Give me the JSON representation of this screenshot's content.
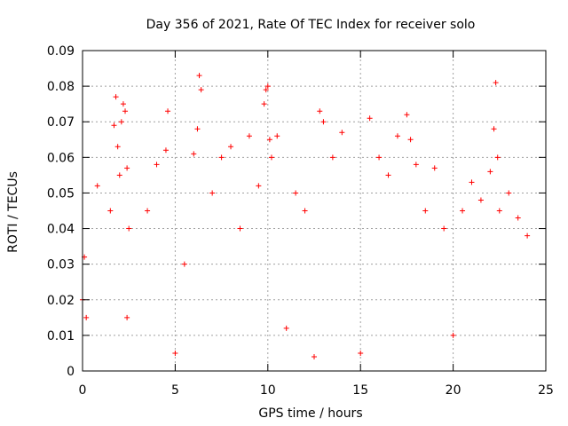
{
  "chart_data": {
    "type": "scatter",
    "title": "Day 356 of 2021, Rate Of TEC Index for receiver solo",
    "xlabel": "GPS time / hours",
    "ylabel": "ROTI / TECUs",
    "xlim": [
      0,
      25
    ],
    "ylim": [
      0,
      0.09
    ],
    "x_ticks": [
      0,
      5,
      10,
      15,
      20,
      25
    ],
    "y_ticks": [
      0,
      0.01,
      0.02,
      0.03,
      0.04,
      0.05,
      0.06,
      0.07,
      0.08,
      0.09
    ],
    "x_tick_labels": [
      "0",
      "5",
      "10",
      "15",
      "20",
      "25"
    ],
    "y_tick_labels": [
      "0",
      "0.01",
      "0.02",
      "0.03",
      "0.04",
      "0.05",
      "0.06",
      "0.07",
      "0.08",
      "0.09"
    ],
    "grid": true,
    "marker": "+",
    "marker_color": "#ff0000",
    "series": [
      {
        "name": "ROTI",
        "x": [
          0.0,
          0.1,
          0.2,
          0.8,
          1.5,
          1.7,
          1.8,
          1.9,
          2.0,
          2.1,
          2.2,
          2.3,
          2.4,
          2.4,
          2.5,
          3.5,
          4.0,
          4.5,
          4.6,
          5.0,
          5.5,
          6.0,
          6.2,
          6.3,
          6.4,
          7.0,
          7.5,
          8.0,
          8.5,
          9.0,
          9.5,
          9.8,
          9.9,
          10.0,
          10.1,
          10.2,
          10.5,
          11.0,
          11.5,
          12.0,
          12.5,
          12.8,
          13.0,
          13.5,
          14.0,
          15.0,
          15.5,
          16.0,
          16.5,
          17.0,
          17.5,
          17.7,
          18.0,
          18.5,
          19.0,
          19.5,
          20.0,
          20.5,
          21.0,
          21.5,
          22.0,
          22.2,
          22.3,
          22.4,
          22.5,
          23.0,
          23.5,
          24.0
        ],
        "y": [
          0.02,
          0.032,
          0.015,
          0.052,
          0.045,
          0.069,
          0.077,
          0.063,
          0.055,
          0.07,
          0.075,
          0.073,
          0.057,
          0.015,
          0.04,
          0.045,
          0.058,
          0.062,
          0.073,
          0.005,
          0.03,
          0.061,
          0.068,
          0.083,
          0.079,
          0.05,
          0.06,
          0.063,
          0.04,
          0.066,
          0.052,
          0.075,
          0.079,
          0.08,
          0.065,
          0.06,
          0.066,
          0.012,
          0.05,
          0.045,
          0.004,
          0.073,
          0.07,
          0.06,
          0.067,
          0.005,
          0.071,
          0.06,
          0.055,
          0.066,
          0.072,
          0.065,
          0.058,
          0.045,
          0.057,
          0.04,
          0.01,
          0.045,
          0.053,
          0.048,
          0.056,
          0.068,
          0.081,
          0.06,
          0.045,
          0.05,
          0.043,
          0.038
        ]
      }
    ]
  }
}
